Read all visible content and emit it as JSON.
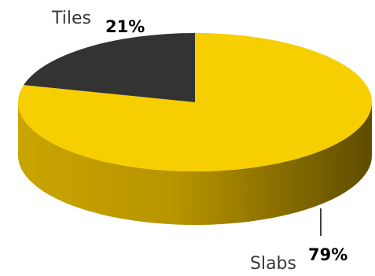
{
  "chart_data": {
    "type": "pie",
    "style": "3d",
    "categories": [
      "Tiles",
      "Slabs"
    ],
    "values": [
      21,
      79
    ],
    "labels": [
      "21%",
      "79%"
    ],
    "colors": [
      "#333333",
      "#f7ce00"
    ],
    "title": "",
    "legend": "none"
  }
}
